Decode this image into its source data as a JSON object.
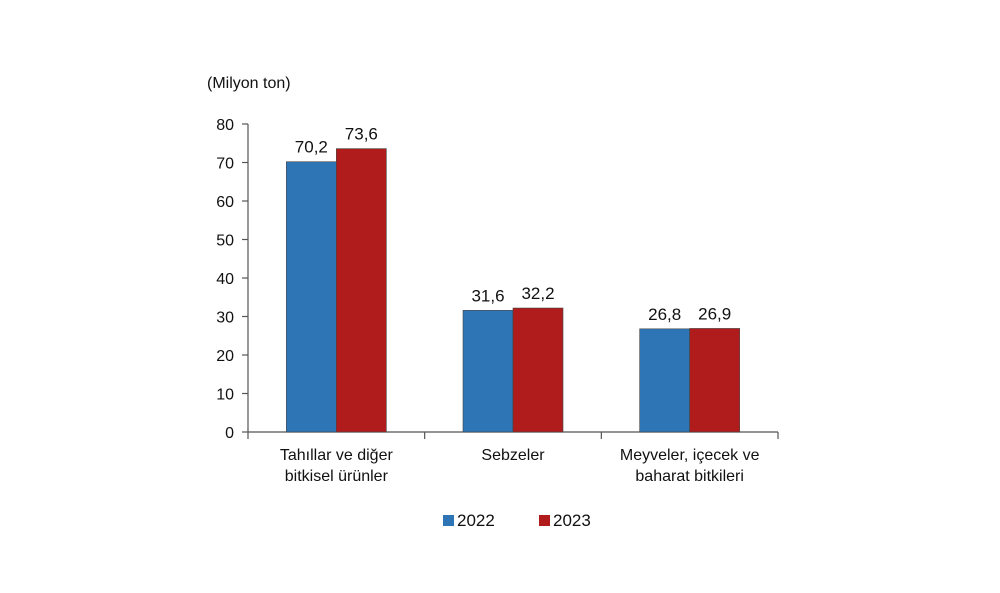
{
  "chart_data": {
    "type": "bar",
    "unit_label": "(Milyon ton)",
    "categories": [
      [
        "Tahıllar ve diğer",
        "bitkisel ürünler"
      ],
      [
        "Sebzeler"
      ],
      [
        "Meyveler, içecek ve",
        "baharat  bitkileri"
      ]
    ],
    "series": [
      {
        "name": "2022",
        "color": "#2e75b6",
        "values": [
          70.2,
          31.6,
          26.8
        ],
        "labels": [
          "70,2",
          "31,6",
          "26,8"
        ]
      },
      {
        "name": "2023",
        "color": "#b01c1c",
        "values": [
          73.6,
          32.2,
          26.9
        ],
        "labels": [
          "73,6",
          "32,2",
          "26,9"
        ]
      }
    ],
    "ylim": [
      0,
      80
    ],
    "yticks": [
      0,
      10,
      20,
      30,
      40,
      50,
      60,
      70,
      80
    ],
    "legend_position": "bottom",
    "grid": false
  }
}
